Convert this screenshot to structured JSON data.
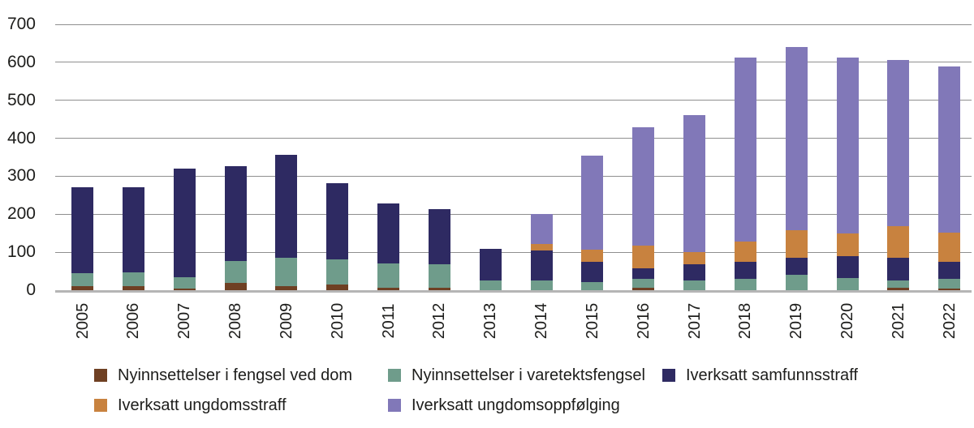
{
  "chart_data": {
    "type": "bar",
    "stacked": true,
    "title": "",
    "categories": [
      "2005",
      "2006",
      "2007",
      "2008",
      "2009",
      "2010",
      "2011",
      "2012",
      "2013",
      "2014",
      "2015",
      "2016",
      "2017",
      "2018",
      "2019",
      "2020",
      "2021",
      "2022"
    ],
    "series": [
      {
        "key": "fengsel-dom",
        "name": "Nyinnsettelser i fengsel ved dom",
        "color": "#6f4023",
        "values": [
          10,
          10,
          5,
          20,
          10,
          15,
          6,
          6,
          0,
          0,
          0,
          6,
          0,
          0,
          0,
          0,
          7,
          5
        ]
      },
      {
        "key": "varetekt",
        "name": "Nyinnsettelser i varetektsfengsel",
        "color": "#6f9c8b",
        "values": [
          35,
          37,
          30,
          57,
          75,
          67,
          64,
          63,
          25,
          25,
          21,
          24,
          26,
          30,
          40,
          31,
          19,
          25
        ]
      },
      {
        "key": "samfunnsstraff",
        "name": "Iverksatt samfunnsstraff",
        "color": "#2e2a62",
        "values": [
          225,
          223,
          285,
          249,
          272,
          200,
          158,
          144,
          83,
          79,
          54,
          28,
          43,
          45,
          46,
          59,
          59,
          44
        ]
      },
      {
        "key": "ungdomsstraff",
        "name": "Iverksatt ungdomsstraff",
        "color": "#c8823f",
        "values": [
          0,
          0,
          0,
          0,
          0,
          0,
          0,
          0,
          0,
          18,
          31,
          60,
          31,
          53,
          72,
          59,
          83,
          78
        ]
      },
      {
        "key": "ungdomsoppfolging",
        "name": "Iverksatt ungdomsoppfølging",
        "color": "#8178b8",
        "values": [
          0,
          0,
          0,
          0,
          0,
          0,
          0,
          0,
          0,
          78,
          249,
          310,
          360,
          484,
          482,
          464,
          438,
          438
        ]
      }
    ],
    "xlabel": "",
    "ylabel": "",
    "ylim": [
      0,
      700
    ],
    "yticks": [
      0,
      100,
      200,
      300,
      400,
      500,
      600,
      700
    ],
    "grid": true,
    "x_label_rotation_deg": -90,
    "legend_position": "bottom",
    "colors": {
      "background": "#ffffff",
      "gridline": "#8f8f8f",
      "baseline": "#b5b5b5",
      "text": "#1d1d1b"
    }
  }
}
